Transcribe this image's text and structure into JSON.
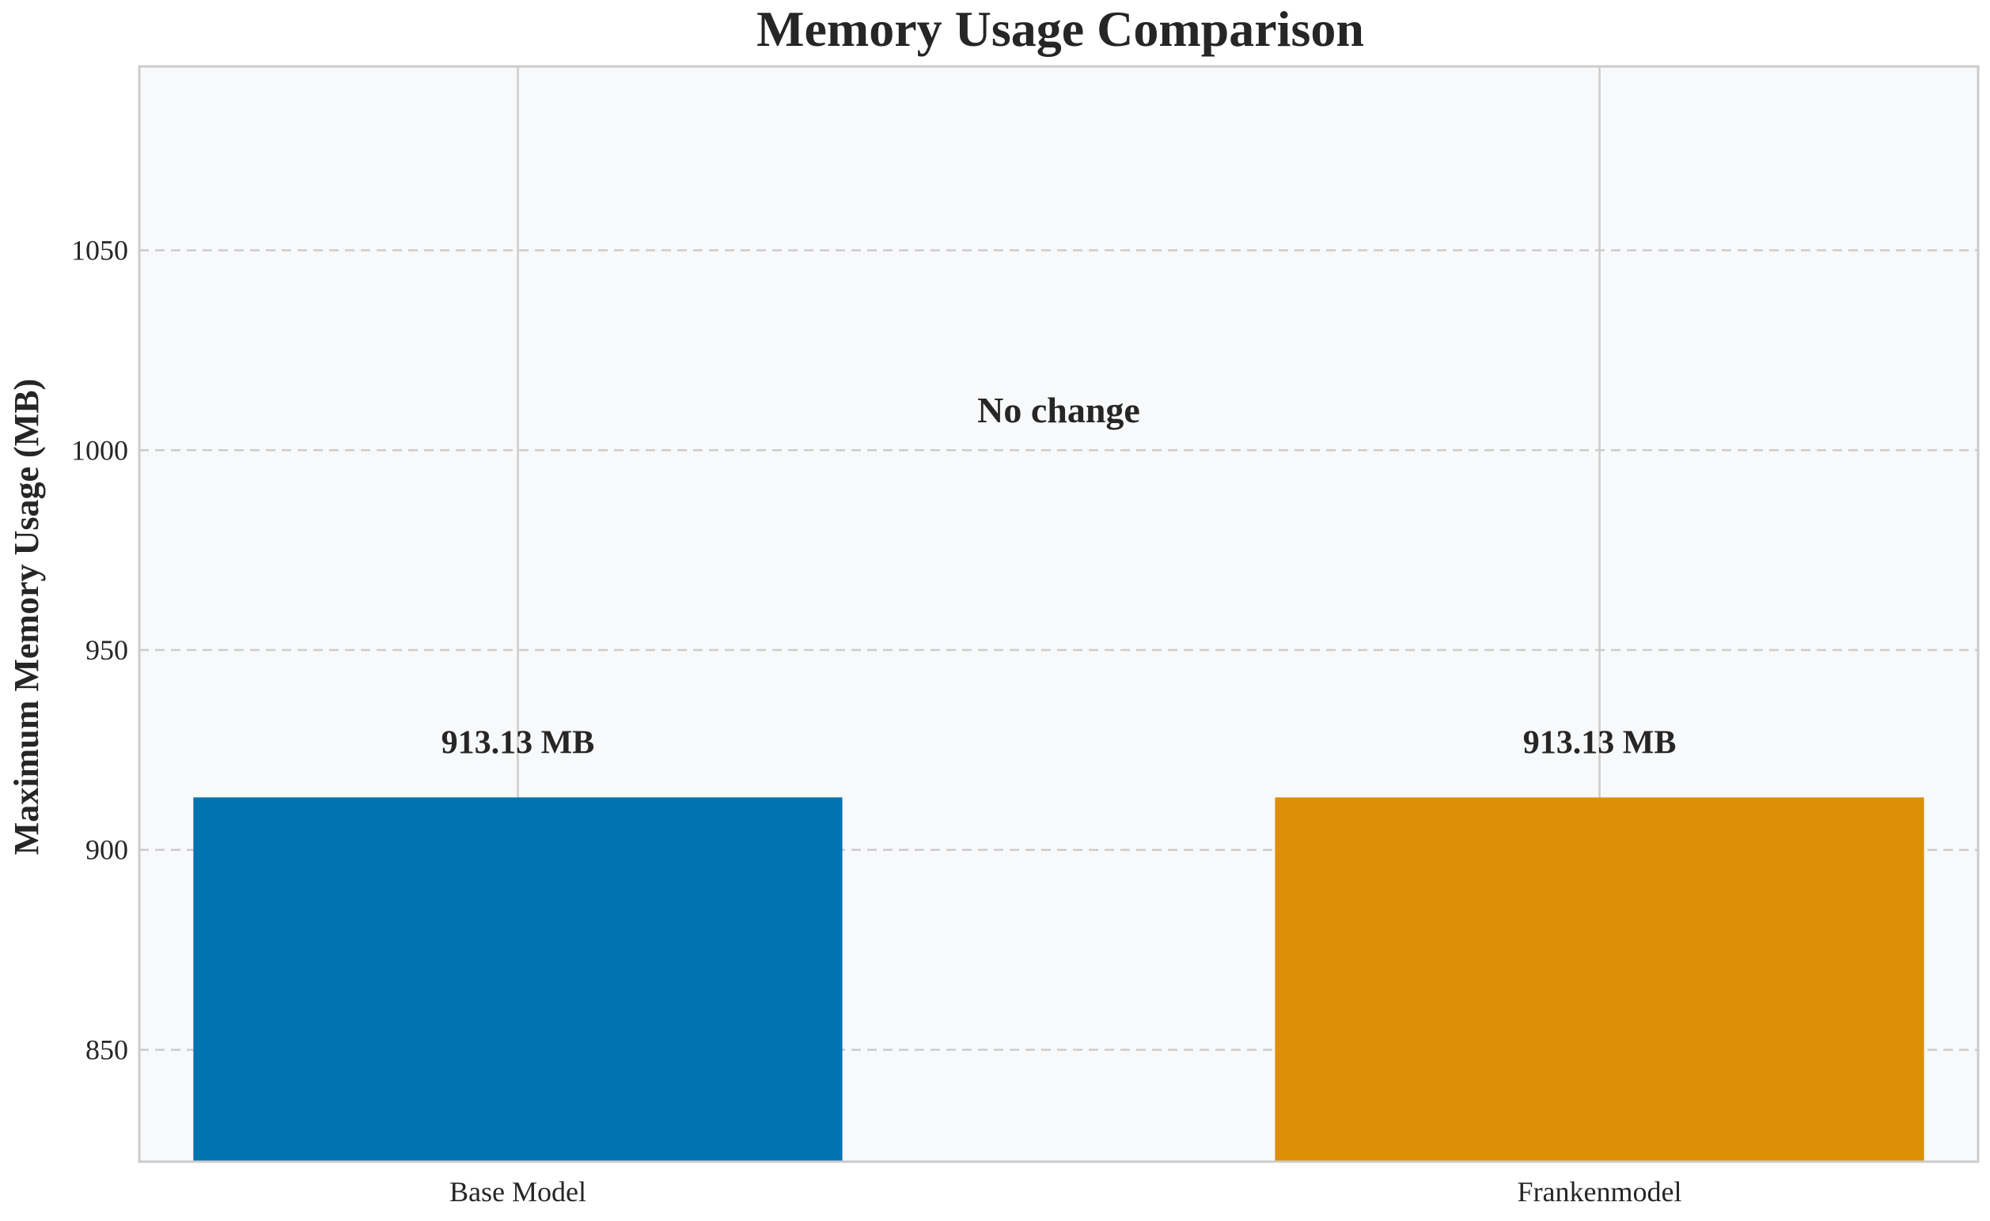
{
  "chart_data": {
    "type": "bar",
    "title": "Memory Usage Comparison",
    "xlabel": "",
    "ylabel": "Maximum Memory Usage (MB)",
    "categories": [
      "Base Model",
      "Frankenmodel"
    ],
    "values": [
      913.13,
      913.13
    ],
    "data_labels": [
      "913.13 MB",
      "913.13 MB"
    ],
    "bar_colors": [
      "#0072b2",
      "#de8f05"
    ],
    "ylim": [
      822,
      1096
    ],
    "yticks": [
      850,
      900,
      950,
      1000,
      1050
    ],
    "ytick_labels": [
      "850",
      "900",
      "950",
      "1000",
      "1050"
    ],
    "annotation": {
      "text": "No change",
      "x": 0.5,
      "y": 1007
    },
    "grid": {
      "y": "dashed",
      "x": "solid"
    },
    "background": "#f8f9fa",
    "frame_color": "#cccccc",
    "grid_color": "#cccccc"
  }
}
